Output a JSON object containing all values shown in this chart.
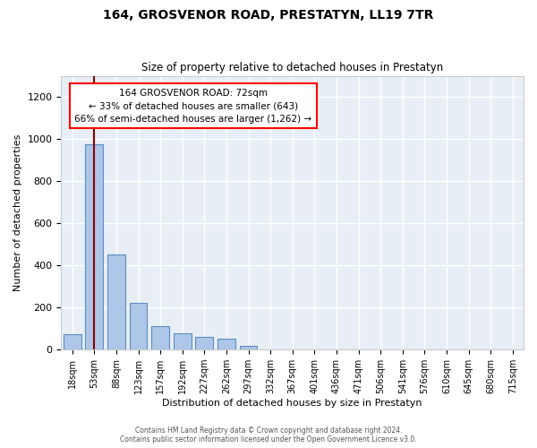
{
  "title": "164, GROSVENOR ROAD, PRESTATYN, LL19 7TR",
  "subtitle": "Size of property relative to detached houses in Prestatyn",
  "xlabel": "Distribution of detached houses by size in Prestatyn",
  "ylabel": "Number of detached properties",
  "bar_color": "#aec6e8",
  "bar_edge_color": "#5a8fc2",
  "background_color": "#e8eef5",
  "grid_color": "#ffffff",
  "categories": [
    "18sqm",
    "53sqm",
    "88sqm",
    "123sqm",
    "157sqm",
    "192sqm",
    "227sqm",
    "262sqm",
    "297sqm",
    "332sqm",
    "367sqm",
    "401sqm",
    "436sqm",
    "471sqm",
    "506sqm",
    "541sqm",
    "576sqm",
    "610sqm",
    "645sqm",
    "680sqm",
    "715sqm"
  ],
  "values": [
    72,
    975,
    450,
    220,
    110,
    78,
    60,
    50,
    18,
    0,
    0,
    0,
    0,
    0,
    0,
    0,
    0,
    0,
    0,
    0,
    0
  ],
  "ylim": [
    0,
    1300
  ],
  "yticks": [
    0,
    200,
    400,
    600,
    800,
    1000,
    1200
  ],
  "red_line_x": 1.0,
  "annotation_text": "164 GROSVENOR ROAD: 72sqm\n← 33% of detached houses are smaller (643)\n66% of semi-detached houses are larger (1,262) →",
  "footer_line1": "Contains HM Land Registry data © Crown copyright and database right 2024.",
  "footer_line2": "Contains public sector information licensed under the Open Government Licence v3.0."
}
